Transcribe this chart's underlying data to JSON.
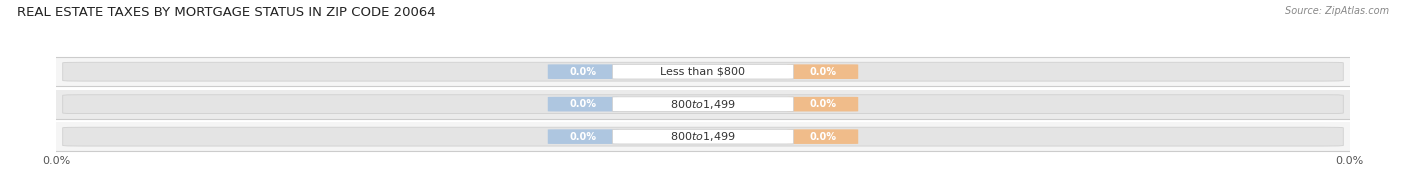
{
  "title": "REAL ESTATE TAXES BY MORTGAGE STATUS IN ZIP CODE 20064",
  "source": "Source: ZipAtlas.com",
  "categories": [
    "Less than $800",
    "$800 to $1,499",
    "$800 to $1,499"
  ],
  "without_mortgage": [
    0.0,
    0.0,
    0.0
  ],
  "with_mortgage": [
    0.0,
    0.0,
    0.0
  ],
  "without_mortgage_color": "#aec6e0",
  "with_mortgage_color": "#f0bc8a",
  "pill_bg_color": "#e4e4e4",
  "pill_edge_color": "#d0d0d0",
  "row_bg_light": "#f5f5f5",
  "row_bg_dark": "#ebebeb",
  "title_fontsize": 9.5,
  "label_fontsize": 8,
  "value_fontsize": 7,
  "tick_fontsize": 8,
  "source_fontsize": 7,
  "legend_fontsize": 8,
  "figsize": [
    14.06,
    1.96
  ],
  "dpi": 100
}
